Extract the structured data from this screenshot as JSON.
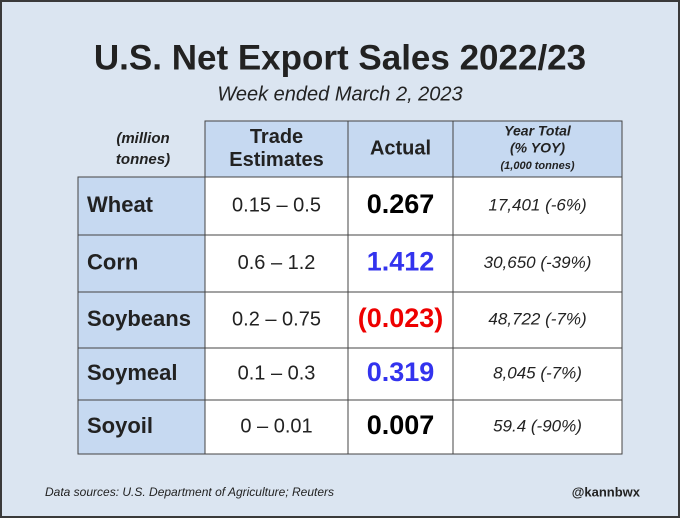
{
  "header": {
    "title": "U.S. Net Export Sales 2022/23",
    "subtitle": "Week ended March 2, 2023"
  },
  "table": {
    "unit_note": [
      "(million",
      "tonnes)"
    ],
    "columns": [
      [
        "Trade",
        "Estimates"
      ],
      [
        "Actual"
      ],
      [
        "Year Total",
        "(% YOY)",
        "(1,000 tonnes)"
      ]
    ],
    "rows": [
      [
        "Wheat",
        "0.15 – 0.5",
        "0.267",
        "17,401 (-6%)"
      ],
      [
        "Corn",
        "0.6 – 1.2",
        "1.412",
        "30,650 (-39%)"
      ],
      [
        "Soybeans",
        "0.2 – 0.75",
        "(0.023)",
        "48,722 (-7%)"
      ],
      [
        "Soymeal",
        "0.1 – 0.3",
        "0.319",
        "8,045 (-7%)"
      ],
      [
        "Soyoil",
        "0 – 0.01",
        "0.007",
        "59.4 (-90%)"
      ]
    ],
    "actual_colors": [
      "#000000",
      "#3333ee",
      "#ee0000",
      "#3333ee",
      "#000000"
    ]
  },
  "footer": {
    "source": "Data sources: U.S. Department of Agriculture; Reuters",
    "handle": "@kannbwx"
  }
}
